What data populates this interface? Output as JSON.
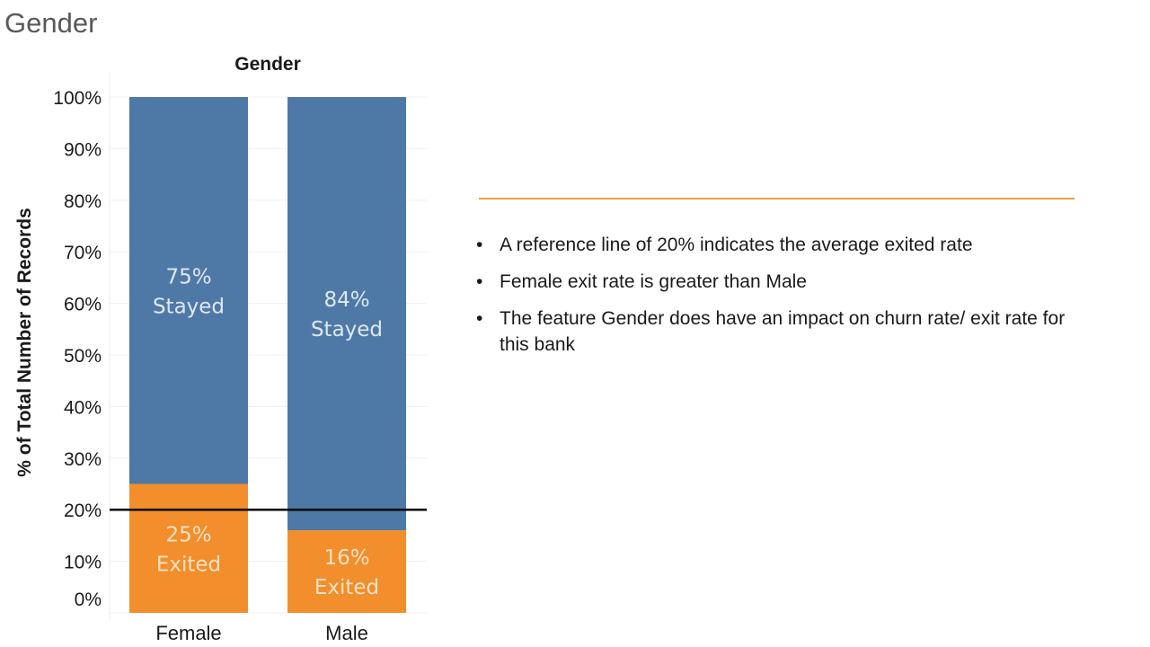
{
  "slide": {
    "title": "Gender"
  },
  "colors": {
    "stayed": "#4e79a7",
    "exited": "#f28e2b",
    "reference_line": "#000000",
    "divider": "#e5a33a"
  },
  "chart_data": {
    "type": "bar",
    "stacked": true,
    "title": "Gender",
    "xlabel": "",
    "ylabel": "% of Total Number of Records",
    "categories": [
      "Female",
      "Male"
    ],
    "series": [
      {
        "name": "Exited",
        "values": [
          25,
          16
        ],
        "labels": [
          [
            "25%",
            "Exited"
          ],
          [
            "16%",
            "Exited"
          ]
        ]
      },
      {
        "name": "Stayed",
        "values": [
          75,
          84
        ],
        "labels": [
          [
            "75%",
            "Stayed"
          ],
          [
            "84%",
            "Stayed"
          ]
        ]
      }
    ],
    "ylim": [
      0,
      100
    ],
    "yticks": [
      "0%",
      "10%",
      "20%",
      "30%",
      "40%",
      "50%",
      "60%",
      "70%",
      "80%",
      "90%",
      "100%"
    ],
    "reference_line": 20,
    "grid": true
  },
  "notes": {
    "bullets": [
      "A reference line of 20% indicates the average exited rate",
      "Female exit rate is greater than Male",
      "The feature Gender does have an impact on churn rate/ exit rate for this bank"
    ]
  }
}
